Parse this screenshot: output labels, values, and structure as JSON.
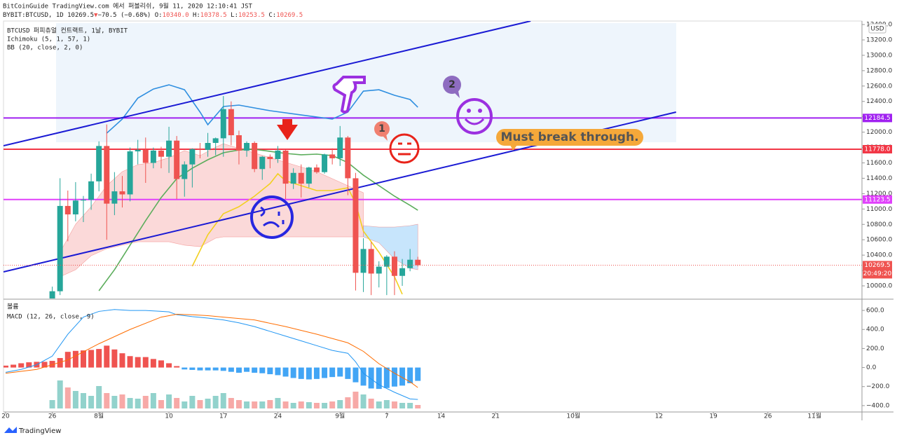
{
  "header": {
    "line1": "BitCoinGuide TradingView.com 에서 퍼블리쉬, 9월 11, 2020 12:10:41 JST",
    "line2": [
      {
        "text": "BYBIT:BTCUSD, 1D 10269.5",
        "color": "#222"
      },
      {
        "text": "▼",
        "color": "#ef5350"
      },
      {
        "text": "−70.5 (−0.68%) O:",
        "color": "#222"
      },
      {
        "text": "10340.0",
        "color": "#ef5350"
      },
      {
        "text": " H:",
        "color": "#222"
      },
      {
        "text": "10378.5",
        "color": "#ef5350"
      },
      {
        "text": " L:",
        "color": "#222"
      },
      {
        "text": "10253.5",
        "color": "#ef5350"
      },
      {
        "text": " C:",
        "color": "#222"
      },
      {
        "text": "10269.5",
        "color": "#ef5350"
      }
    ]
  },
  "annotations": {
    "note": "Must break through.",
    "bubble1": "1",
    "bubble2": "2"
  },
  "footer": "TradingView",
  "chart_data": [
    {
      "type": "candlestick",
      "title": "BTCUSD 퍼피츄얼 컨트랙트, 1날, BYBIT",
      "indicators": [
        "Ichimoku (5, 1, 57, 1)",
        "BB (20, close, 2, 0)"
      ],
      "currency": "USD",
      "x": [
        6,
        7,
        8,
        9,
        10,
        11,
        12,
        13,
        14,
        15,
        16,
        17,
        18,
        19,
        20,
        21,
        22,
        23,
        24,
        25,
        26,
        27,
        28,
        29,
        30,
        31,
        32,
        33,
        34,
        35,
        36,
        37,
        38,
        39,
        40,
        41,
        42,
        43,
        44,
        45,
        46,
        47,
        48,
        49,
        50,
        51,
        52,
        53
      ],
      "open": [
        9700,
        9930,
        11040,
        10930,
        11110,
        11120,
        11360,
        11820,
        11070,
        11230,
        11190,
        11750,
        11770,
        11600,
        11760,
        11680,
        11890,
        11390,
        11580,
        11780,
        11770,
        11860,
        11920,
        12300,
        11960,
        11760,
        11860,
        11520,
        11680,
        11650,
        11760,
        11330,
        11470,
        11330,
        11540,
        11480,
        11710,
        11660,
        11930,
        11400,
        10170,
        10480,
        10160,
        10250,
        10380,
        10130,
        10230,
        10340
      ],
      "high": [
        9990,
        11400,
        11240,
        11350,
        11170,
        11460,
        11880,
        12100,
        11480,
        11430,
        11800,
        11900,
        11930,
        11800,
        11810,
        12070,
        11950,
        11620,
        11790,
        11860,
        11990,
        11930,
        12470,
        12400,
        12020,
        11880,
        11880,
        11690,
        11710,
        11820,
        11770,
        11530,
        11580,
        11550,
        11580,
        11720,
        11790,
        12080,
        11950,
        11470,
        10620,
        10570,
        10320,
        10400,
        10450,
        10350,
        10480,
        10378.5
      ],
      "low": [
        9650,
        9880,
        10580,
        10840,
        10830,
        10990,
        11230,
        10600,
        10920,
        11020,
        11100,
        11580,
        11340,
        11530,
        11530,
        11470,
        11130,
        11160,
        11280,
        11660,
        11680,
        11700,
        11680,
        11830,
        11580,
        11680,
        11480,
        11380,
        11530,
        11600,
        11130,
        11260,
        11150,
        11280,
        11460,
        11460,
        11580,
        11560,
        11180,
        9940,
        9920,
        9880,
        9980,
        9880,
        9880,
        10000,
        10190,
        10253.5
      ],
      "close": [
        9930,
        11040,
        10930,
        11110,
        11120,
        11360,
        11820,
        11070,
        11230,
        11190,
        11750,
        11770,
        11600,
        11760,
        11680,
        11890,
        11390,
        11580,
        11780,
        11770,
        11860,
        11920,
        12300,
        11960,
        11760,
        11860,
        11520,
        11680,
        11650,
        11760,
        11330,
        11470,
        11330,
        11540,
        11480,
        11710,
        11660,
        11930,
        11400,
        10170,
        10480,
        10160,
        10250,
        10380,
        10130,
        10230,
        10340,
        10269.5
      ],
      "up_color": "#26a69a",
      "down_color": "#ef5350",
      "xlim": [
        -0.27,
        110.1
      ],
      "xticks": [
        {
          "value": 0,
          "label": "20"
        },
        {
          "value": 6,
          "label": "26"
        },
        {
          "value": 12,
          "label": "8월"
        },
        {
          "value": 21,
          "label": "10"
        },
        {
          "value": 28,
          "label": "17"
        },
        {
          "value": 35,
          "label": "24"
        },
        {
          "value": 43,
          "label": "9월"
        },
        {
          "value": 49,
          "label": "7"
        },
        {
          "value": 56,
          "label": "14"
        },
        {
          "value": 63,
          "label": "21"
        },
        {
          "value": 73,
          "label": "10월"
        },
        {
          "value": 84,
          "label": "12"
        },
        {
          "value": 91,
          "label": "19"
        },
        {
          "value": 98,
          "label": "26"
        },
        {
          "value": 104,
          "label": "11월"
        }
      ],
      "ylim": [
        9836,
        13446
      ],
      "yticks": [
        {
          "value": 10000,
          "label": "10000.0"
        },
        {
          "value": 10200,
          "label": "10200.0"
        },
        {
          "value": 10400,
          "label": "10400.0"
        },
        {
          "value": 10600,
          "label": "10600.0"
        },
        {
          "value": 10800,
          "label": "10800.0"
        },
        {
          "value": 11000,
          "label": "11000.0"
        },
        {
          "value": 11200,
          "label": "11200.0"
        },
        {
          "value": 11400,
          "label": "11400.0"
        },
        {
          "value": 11600,
          "label": "11600.0"
        },
        {
          "value": 11800,
          "label": "11800.0"
        },
        {
          "value": 12000,
          "label": "12000.0"
        },
        {
          "value": 12200,
          "label": "12200.0"
        },
        {
          "value": 12400,
          "label": "12400.0"
        },
        {
          "value": 12600,
          "label": "12600.0"
        },
        {
          "value": 12800,
          "label": "12800.0"
        },
        {
          "value": 13000,
          "label": "13000.0"
        },
        {
          "value": 13200,
          "label": "13200.0"
        },
        {
          "value": 13400,
          "label": "13400.0"
        }
      ],
      "overlays": [
        {
          "kind": "cloud",
          "color": "rgba(239,83,80,0.22)",
          "x": [
            7,
            9,
            11,
            13,
            15,
            17,
            19,
            21,
            23,
            25,
            27,
            28,
            31,
            34,
            37,
            40,
            43,
            46
          ],
          "upper": [
            10438,
            10802,
            11030,
            11304,
            11486,
            11577,
            11604,
            11668,
            11759,
            11695,
            11805,
            11850,
            11759,
            11668,
            11577,
            11486,
            11349,
            11212
          ],
          "lower": [
            10118,
            10210,
            10392,
            10483,
            10529,
            10574,
            10574,
            10574,
            10529,
            10510,
            10620,
            10638,
            10638,
            10638,
            10638,
            10638,
            10638,
            10638
          ]
        },
        {
          "kind": "cloud",
          "color": "rgba(33,150,243,0.25)",
          "x": [
            46,
            48,
            50,
            52,
            53
          ],
          "upper": [
            10784,
            10765,
            10765,
            10784,
            10802
          ],
          "lower": [
            10638,
            10560,
            10350,
            10230,
            10210
          ]
        },
        {
          "kind": "line",
          "color": "#2f8fe0",
          "x": [
            13,
            15,
            17,
            19,
            21,
            23,
            25,
            26,
            28,
            30,
            34,
            38,
            42,
            44,
            46,
            48,
            50,
            52,
            53
          ],
          "values": [
            11987,
            12170,
            12443,
            12561,
            12616,
            12552,
            12261,
            12097,
            12334,
            12352,
            12279,
            12224,
            12170,
            12261,
            12534,
            12552,
            12480,
            12425,
            12324
          ]
        },
        {
          "kind": "line",
          "color": "#5cad5c",
          "x": [
            12,
            14,
            16,
            18,
            20,
            22,
            24,
            26,
            28,
            30,
            32,
            34,
            36,
            38,
            40,
            42,
            44,
            46,
            48,
            50,
            52,
            53
          ],
          "values": [
            9936,
            10210,
            10529,
            10848,
            11149,
            11395,
            11531,
            11641,
            11732,
            11768,
            11777,
            11750,
            11723,
            11705,
            11714,
            11695,
            11604,
            11440,
            11304,
            11167,
            11048,
            10984
          ]
        },
        {
          "kind": "line",
          "color": "#f2d020",
          "x": [
            24,
            26,
            28,
            30,
            32,
            34,
            35,
            36,
            38,
            40,
            42,
            44,
            45,
            46,
            48,
            50,
            51
          ],
          "values": [
            10255,
            10665,
            10939,
            11030,
            11167,
            11331,
            11459,
            11367,
            11304,
            11240,
            11240,
            11276,
            11076,
            10711,
            10438,
            10118,
            9891
          ]
        }
      ],
      "trendlines": [
        {
          "color": "#1a1ad4",
          "x": [
            -0.27,
            67.5
          ],
          "values": [
            11823,
            13446
          ]
        },
        {
          "color": "#1a1ad4",
          "x": [
            -0.27,
            86.2
          ],
          "values": [
            10182,
            12261
          ]
        }
      ],
      "hlines": [
        {
          "value": 12184.5,
          "color": "#a020f0"
        },
        {
          "value": 11778,
          "label": "11778.0",
          "color": "#f23645"
        },
        {
          "value": 11123.5,
          "color": "#e040fb"
        }
      ],
      "last": {
        "value": 10269.5,
        "countdown": "20:49:20",
        "color": "#ef5350"
      }
    },
    {
      "type": "macd",
      "legend": [
        "볼륨",
        "MACD (12, 26, close, 9)"
      ],
      "xlim": [
        -0.27,
        110.1
      ],
      "ylim": [
        -467,
        711
      ],
      "yticks": [
        {
          "value": 600,
          "label": "600.0"
        },
        {
          "value": 400,
          "label": "400.0"
        },
        {
          "value": 200,
          "label": "200.0"
        },
        {
          "value": 0,
          "label": "0.0"
        },
        {
          "value": -200,
          "label": "−200.0"
        },
        {
          "value": -400,
          "label": "−400.0"
        }
      ],
      "histogram": {
        "up_color": "#ef5350",
        "down_color": "#42a5f5",
        "x": [
          0,
          1,
          2,
          3,
          4,
          5,
          6,
          7,
          8,
          9,
          10,
          11,
          12,
          13,
          14,
          15,
          16,
          17,
          18,
          19,
          20,
          21,
          22,
          23,
          24,
          25,
          26,
          27,
          28,
          29,
          30,
          31,
          32,
          33,
          34,
          35,
          36,
          37,
          38,
          39,
          40,
          41,
          42,
          43,
          44,
          45,
          46,
          47,
          48,
          49,
          50,
          51,
          52,
          53
        ],
        "values": [
          20,
          30,
          45,
          55,
          60,
          60,
          70,
          100,
          165,
          175,
          180,
          185,
          195,
          230,
          190,
          150,
          120,
          110,
          110,
          90,
          75,
          45,
          15,
          -20,
          -25,
          -30,
          -30,
          -30,
          -35,
          -45,
          -55,
          -45,
          -55,
          -60,
          -70,
          -80,
          -95,
          -110,
          -120,
          -125,
          -120,
          -110,
          -100,
          -95,
          -120,
          -155,
          -190,
          -220,
          -225,
          -215,
          -200,
          -190,
          -165,
          -140
        ]
      },
      "macd": {
        "color": "#2196f3",
        "x": [
          0,
          2,
          4,
          6,
          8,
          10,
          12,
          14,
          16,
          18,
          20,
          21,
          22,
          24,
          26,
          28,
          30,
          32,
          34,
          36,
          38,
          40,
          42,
          44,
          45,
          46,
          48,
          50,
          52,
          53
        ],
        "values": [
          -50,
          -20,
          30,
          120,
          350,
          530,
          590,
          610,
          600,
          600,
          590,
          585,
          555,
          535,
          520,
          500,
          470,
          430,
          380,
          330,
          280,
          230,
          180,
          150,
          60,
          -60,
          -180,
          -260,
          -330,
          -335
        ]
      },
      "signal": {
        "color": "#ff6d00",
        "x": [
          0,
          4,
          8,
          12,
          16,
          20,
          22,
          24,
          26,
          28,
          32,
          36,
          40,
          44,
          46,
          48,
          50,
          52,
          53
        ],
        "values": [
          -60,
          -20,
          80,
          250,
          400,
          530,
          560,
          555,
          545,
          530,
          500,
          430,
          350,
          260,
          170,
          40,
          -60,
          -150,
          -210
        ]
      },
      "volume": {
        "up_color": "rgba(38,166,154,0.5)",
        "down_color": "rgba(239,83,80,0.5)",
        "x": [
          6,
          7,
          8,
          9,
          10,
          11,
          12,
          13,
          14,
          15,
          16,
          17,
          18,
          19,
          20,
          21,
          22,
          23,
          24,
          25,
          26,
          27,
          28,
          29,
          30,
          31,
          32,
          33,
          34,
          35,
          36,
          37,
          38,
          39,
          40,
          41,
          42,
          43,
          44,
          45,
          46,
          47,
          48,
          49,
          50,
          51,
          52,
          53
        ],
        "values": [
          12,
          40,
          30,
          25,
          22,
          18,
          32,
          22,
          18,
          20,
          15,
          14,
          18,
          22,
          12,
          20,
          15,
          10,
          18,
          12,
          14,
          18,
          22,
          15,
          12,
          10,
          10,
          10,
          12,
          15,
          10,
          8,
          10,
          9,
          8,
          8,
          10,
          12,
          16,
          24,
          20,
          14,
          10,
          12,
          10,
          8,
          8,
          5
        ]
      }
    }
  ]
}
